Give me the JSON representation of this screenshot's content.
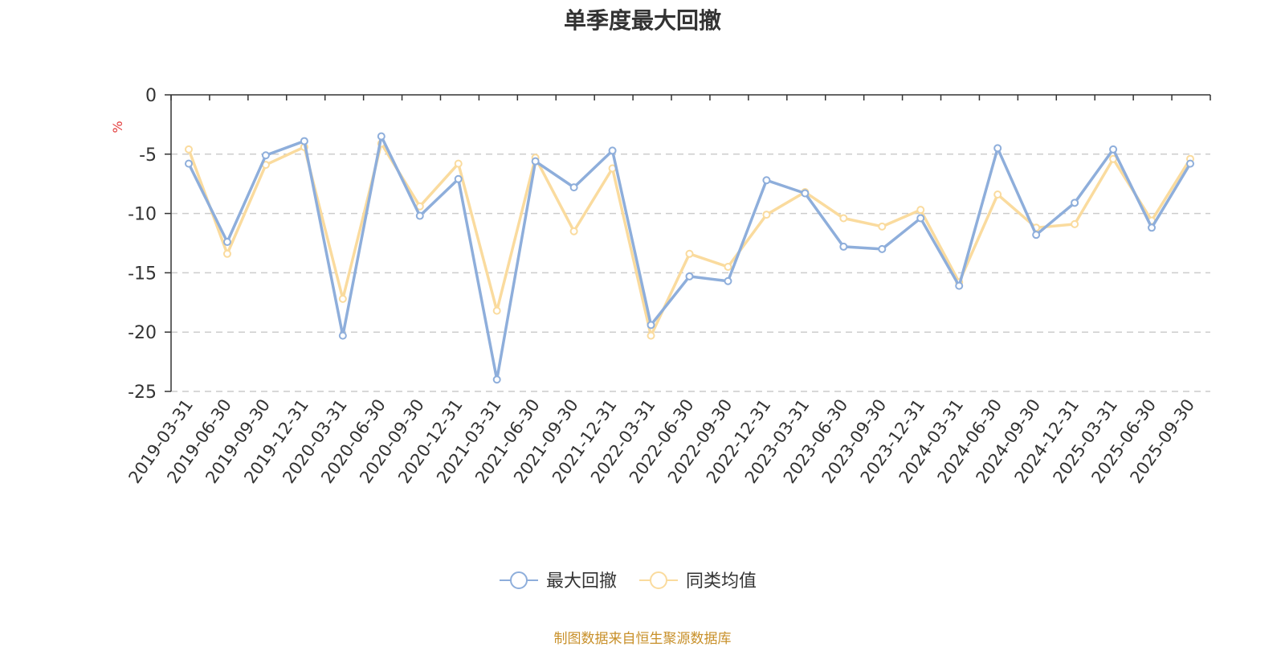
{
  "title": "单季度最大回撤",
  "source": "制图数据来自恒生聚源数据库",
  "chart_data": {
    "type": "line",
    "ylabel": "%",
    "ylim": [
      -25,
      0
    ],
    "yticks": [
      0,
      -5,
      -10,
      -15,
      -20,
      -25
    ],
    "grid": true,
    "legend_position": "bottom-center",
    "categories": [
      "2019-03-31",
      "2019-06-30",
      "2019-09-30",
      "2019-12-31",
      "2020-03-31",
      "2020-06-30",
      "2020-09-30",
      "2020-12-31",
      "2021-03-31",
      "2021-06-30",
      "2021-09-30",
      "2021-12-31",
      "2022-03-31",
      "2022-06-30",
      "2022-09-30",
      "2022-12-31",
      "2023-03-31",
      "2023-06-30",
      "2023-09-30",
      "2023-12-31",
      "2024-03-31",
      "2024-06-30",
      "2024-09-30",
      "2024-12-31",
      "2025-03-31",
      "2025-06-30",
      "2025-09-30"
    ],
    "series": [
      {
        "name": "最大回撤",
        "color": "#8eaedb",
        "values": [
          -5.8,
          -12.4,
          -5.1,
          -3.9,
          -20.3,
          -3.5,
          -10.2,
          -7.1,
          -24.0,
          -5.6,
          -7.8,
          -4.7,
          -19.4,
          -15.3,
          -15.7,
          -7.2,
          -8.3,
          -12.8,
          -13.0,
          -10.4,
          -16.1,
          -4.5,
          -11.8,
          -9.1,
          -4.6,
          -11.2,
          -5.8
        ]
      },
      {
        "name": "同类均值",
        "color": "#fadb9e",
        "values": [
          -4.6,
          -13.4,
          -5.9,
          -4.4,
          -17.2,
          -4.1,
          -9.4,
          -5.8,
          -18.2,
          -5.3,
          -11.5,
          -6.2,
          -20.3,
          -13.4,
          -14.5,
          -10.1,
          -8.2,
          -10.4,
          -11.1,
          -9.7,
          -15.8,
          -8.4,
          -11.2,
          -10.9,
          -5.4,
          -10.6,
          -5.4
        ]
      }
    ]
  }
}
